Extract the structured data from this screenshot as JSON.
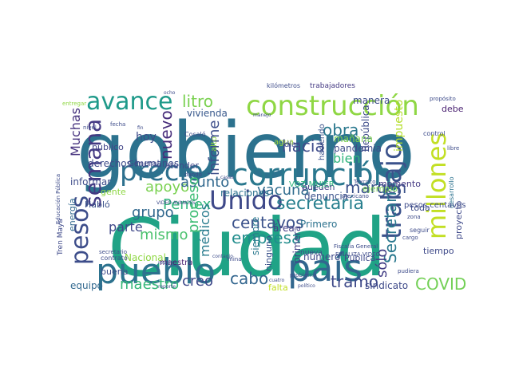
{
  "cloud": {
    "words": [
      {
        "text": "gobierno",
        "color": "#2c728e"
      },
      {
        "text": "Ciudad",
        "color": "#20a386"
      },
      {
        "text": "construcción",
        "color": "#8fd744"
      },
      {
        "text": "corrupción",
        "color": "#2a788e"
      },
      {
        "text": "país",
        "color": "#31678e"
      },
      {
        "text": "pueblo",
        "color": "#2c728e"
      },
      {
        "text": "precio",
        "color": "#2d708e"
      },
      {
        "text": "Unido",
        "color": "#3e4989"
      },
      {
        "text": "avance",
        "color": "#1f9a8a"
      },
      {
        "text": "millones",
        "color": "#c2df23"
      },
      {
        "text": "trabajo",
        "color": "#3b528b"
      },
      {
        "text": "pesos",
        "color": "#3d4d8a"
      },
      {
        "text": "semana",
        "color": "#443983"
      },
      {
        "text": "hacia",
        "color": "#3e4c8a"
      },
      {
        "text": "secretaría",
        "color": "#277f8e"
      },
      {
        "text": "margen",
        "color": "#3b528b"
      },
      {
        "text": "COVID",
        "color": "#73d056"
      },
      {
        "text": "vacuna",
        "color": "#2f6c8e"
      },
      {
        "text": "Pemex",
        "color": "#31b57b"
      },
      {
        "text": "centavos",
        "color": "#3b528b"
      },
      {
        "text": "obra",
        "color": "#2a788e"
      },
      {
        "text": "litro",
        "color": "#7ad151"
      },
      {
        "text": "nuevo",
        "color": "#472d7b"
      },
      {
        "text": "informe",
        "color": "#3d4e8a"
      },
      {
        "text": "mismo",
        "color": "#4ac16d"
      },
      {
        "text": "grupo",
        "color": "#31688e"
      },
      {
        "text": "apoyo",
        "color": "#7ad151"
      },
      {
        "text": "asunto",
        "color": "#31688e"
      },
      {
        "text": "empresa",
        "color": "#228d8d"
      },
      {
        "text": "cabo",
        "color": "#32658e"
      },
      {
        "text": "tramo",
        "color": "#3e4989"
      },
      {
        "text": "creo",
        "color": "#3e4989"
      },
      {
        "text": "maestro",
        "color": "#35b779"
      },
      {
        "text": "Secretaría",
        "color": "#2a788e"
      },
      {
        "text": "sólo",
        "color": "#433e85"
      },
      {
        "text": "proceso",
        "color": "#3dbc74"
      },
      {
        "text": "médicos",
        "color": "#287c8e"
      },
      {
        "text": "parte",
        "color": "#3f4889"
      },
      {
        "text": "Muchas",
        "color": "#46327e"
      },
      {
        "text": "bien",
        "color": "#2fb47c"
      },
      {
        "text": "hoy",
        "color": "#3e4c8a"
      },
      {
        "text": "impuesto",
        "color": "#b5de2b"
      },
      {
        "text": "República",
        "color": "#3e4c8a"
      },
      {
        "text": "relaciones",
        "color": "#2c728e"
      },
      {
        "text": "derechos humanos",
        "color": "#3e4c8a"
      },
      {
        "text": "vivienda",
        "color": "#38588c"
      },
      {
        "text": "público",
        "color": "#414487"
      },
      {
        "text": "manera",
        "color": "#3e4c8a"
      },
      {
        "text": "proyecto",
        "color": "#3e4989"
      },
      {
        "text": "tiempo",
        "color": "#3e4989"
      },
      {
        "text": "Nacional",
        "color": "#8fd744"
      },
      {
        "text": "sindicato",
        "color": "#3e4989"
      },
      {
        "text": "equipo",
        "color": "#31688e"
      },
      {
        "text": "primera",
        "color": "#433e85"
      },
      {
        "text": "área",
        "color": "#433e85"
      },
      {
        "text": "Primero",
        "color": "#2c728e"
      },
      {
        "text": "pandemia",
        "color": "#3e4c8a"
      },
      {
        "text": "mañana",
        "color": "#7ad151"
      },
      {
        "text": "denuncia",
        "color": "#3b528b"
      },
      {
        "text": "ejemplo",
        "color": "#7ad151"
      },
      {
        "text": "pueden",
        "color": "#433e85"
      },
      {
        "text": "informar",
        "color": "#3e4c8a"
      },
      {
        "text": "energía",
        "color": "#31688e"
      },
      {
        "text": "momento",
        "color": "#443983"
      },
      {
        "text": "debe",
        "color": "#481f70"
      },
      {
        "text": "toda",
        "color": "#3e4c8a"
      },
      {
        "text": "gente",
        "color": "#8fd744"
      },
      {
        "text": "siempre",
        "color": "#2a788e"
      },
      {
        "text": "ninguno",
        "color": "#3b528b"
      },
      {
        "text": "número",
        "color": "#3e4989"
      },
      {
        "text": "buena",
        "color": "#3e4c8a"
      },
      {
        "text": "Pública",
        "color": "#3e4989"
      },
      {
        "text": "Habló",
        "color": "#3b528b"
      },
      {
        "text": "falta",
        "color": "#c2df23"
      },
      {
        "text": "agua",
        "color": "#a2da37"
      },
      {
        "text": "alto",
        "color": "#8fd744"
      },
      {
        "text": "haciendo",
        "color": "#3b528b"
      },
      {
        "text": "atender",
        "color": "#3e4989"
      },
      {
        "text": "General",
        "color": "#3e4989"
      },
      {
        "text": "días",
        "color": "#3e4c8a"
      },
      {
        "text": "VOZ MUJER",
        "color": "#2fb47c"
      },
      {
        "text": "Tren Maya",
        "color": "#3e4989"
      },
      {
        "text": "trabajadores",
        "color": "#443983"
      },
      {
        "text": "kilómetros",
        "color": "#3e4c8a"
      },
      {
        "text": "maestra",
        "color": "#481f70"
      },
      {
        "text": "contrato",
        "color": "#3e4c8a"
      },
      {
        "text": "desarrollo",
        "color": "#2c728e"
      },
      {
        "text": "nueva",
        "color": "#3e4989"
      },
      {
        "text": "Cosaló",
        "color": "#3e4c8a"
      },
      {
        "text": "FINALIZA VIDEO",
        "color": "#3e4c8a"
      },
      {
        "text": "Fiscalía General",
        "color": "#3e4c8a"
      },
      {
        "text": "Educación Pública",
        "color": "#3e4c8a"
      },
      {
        "text": "pesos centavos",
        "color": "#3e4c8a"
      },
      {
        "text": "mina",
        "color": "#3e4c8a"
      },
      {
        "text": "reporte",
        "color": "#3e4c8a"
      },
      {
        "text": "entregar",
        "color": "#8fd744"
      },
      {
        "text": "propósito",
        "color": "#3e4c8a"
      },
      {
        "text": "seguir",
        "color": "#3e4c8a"
      },
      {
        "text": "pudiera",
        "color": "#3e4c8a"
      },
      {
        "text": "problema",
        "color": "#3e4c8a"
      },
      {
        "text": "reunión",
        "color": "#3e4c8a"
      },
      {
        "text": "Texcoco",
        "color": "#3e4c8a"
      },
      {
        "text": "control",
        "color": "#3e4c8a"
      },
      {
        "text": "dando",
        "color": "#3e4c8a"
      },
      {
        "text": "cuatro",
        "color": "#3e4c8a"
      },
      {
        "text": "político",
        "color": "#3e4c8a"
      },
      {
        "text": "secretario",
        "color": "#3e4c8a"
      },
      {
        "text": "zona",
        "color": "#3e4c8a"
      },
      {
        "text": "mexicano",
        "color": "#3e4c8a"
      },
      {
        "text": "nivel",
        "color": "#3e4c8a"
      },
      {
        "text": "fecha",
        "color": "#3e4c8a"
      },
      {
        "text": "cargo",
        "color": "#3e4c8a"
      },
      {
        "text": "libre",
        "color": "#3e4c8a"
      },
      {
        "text": "casas",
        "color": "#3e4c8a"
      },
      {
        "text": "manejo",
        "color": "#3e4c8a"
      },
      {
        "text": "ocho",
        "color": "#3e4c8a"
      },
      {
        "text": "VIDEO AVANCES",
        "color": "#3e4c8a"
      },
      {
        "text": "contagio",
        "color": "#3e4c8a"
      },
      {
        "text": "fin",
        "color": "#3e4c8a"
      }
    ]
  }
}
